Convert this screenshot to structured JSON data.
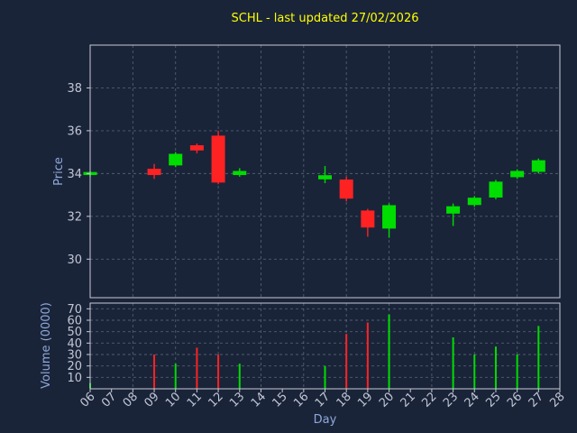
{
  "colors": {
    "background": "#1a2439",
    "frame": "#c5cbd6",
    "grid": "#8b96a8",
    "tick_label": "#c0c6d4",
    "axis_label": "#8fa9d9",
    "title": "#ffff00",
    "green": "#00dd00",
    "red": "#ff2222"
  },
  "chart_data": {
    "type": "candlestick+volume",
    "title": "SCHL - last updated 27/02/2026",
    "xlabel": "Day",
    "price_ylabel": "Price",
    "volume_ylabel": "Volume (0000)",
    "x_ticks": [
      "06",
      "07",
      "08",
      "09",
      "10",
      "11",
      "12",
      "13",
      "14",
      "15",
      "16",
      "17",
      "18",
      "19",
      "20",
      "21",
      "22",
      "23",
      "24",
      "25",
      "26",
      "27",
      "28"
    ],
    "price_ticks": [
      30,
      32,
      34,
      36,
      38
    ],
    "volume_ticks": [
      10,
      20,
      30,
      40,
      50,
      60,
      70
    ],
    "price_ylim": [
      28.2,
      40.0
    ],
    "volume_ylim": [
      0,
      75
    ],
    "grid": "dashed",
    "candles": [
      {
        "day": 6,
        "open": 33.95,
        "close": 34.05,
        "high": 34.1,
        "low": 33.85,
        "color": "green"
      },
      {
        "day": 9,
        "open": 34.2,
        "close": 33.95,
        "high": 34.45,
        "low": 33.75,
        "color": "red"
      },
      {
        "day": 10,
        "open": 34.4,
        "close": 34.9,
        "high": 35.0,
        "low": 34.3,
        "color": "green"
      },
      {
        "day": 11,
        "open": 35.3,
        "close": 35.1,
        "high": 35.4,
        "low": 34.95,
        "color": "red"
      },
      {
        "day": 12,
        "open": 35.75,
        "close": 33.6,
        "high": 36.0,
        "low": 33.5,
        "color": "red"
      },
      {
        "day": 13,
        "open": 33.95,
        "close": 34.1,
        "high": 34.25,
        "low": 33.85,
        "color": "green"
      },
      {
        "day": 17,
        "open": 33.75,
        "close": 33.9,
        "high": 34.35,
        "low": 33.55,
        "color": "green"
      },
      {
        "day": 18,
        "open": 33.7,
        "close": 32.85,
        "high": 33.85,
        "low": 32.7,
        "color": "red"
      },
      {
        "day": 19,
        "open": 32.25,
        "close": 31.5,
        "high": 32.35,
        "low": 31.05,
        "color": "red"
      },
      {
        "day": 20,
        "open": 31.45,
        "close": 32.5,
        "high": 32.6,
        "low": 31.0,
        "color": "green"
      },
      {
        "day": 23,
        "open": 32.15,
        "close": 32.45,
        "high": 32.6,
        "low": 31.55,
        "color": "green"
      },
      {
        "day": 24,
        "open": 32.55,
        "close": 32.85,
        "high": 32.95,
        "low": 32.45,
        "color": "green"
      },
      {
        "day": 25,
        "open": 32.9,
        "close": 33.6,
        "high": 33.7,
        "low": 32.8,
        "color": "green"
      },
      {
        "day": 26,
        "open": 33.85,
        "close": 34.1,
        "high": 34.2,
        "low": 33.75,
        "color": "green"
      },
      {
        "day": 27,
        "open": 34.1,
        "close": 34.6,
        "high": 34.7,
        "low": 34.0,
        "color": "green"
      }
    ],
    "volumes": [
      {
        "day": 6,
        "value": 5,
        "color": "green"
      },
      {
        "day": 9,
        "value": 30,
        "color": "red"
      },
      {
        "day": 10,
        "value": 22,
        "color": "green"
      },
      {
        "day": 11,
        "value": 36,
        "color": "red"
      },
      {
        "day": 12,
        "value": 30,
        "color": "red"
      },
      {
        "day": 13,
        "value": 22,
        "color": "green"
      },
      {
        "day": 17,
        "value": 20,
        "color": "green"
      },
      {
        "day": 18,
        "value": 48,
        "color": "red"
      },
      {
        "day": 19,
        "value": 58,
        "color": "red"
      },
      {
        "day": 20,
        "value": 65,
        "color": "green"
      },
      {
        "day": 23,
        "value": 45,
        "color": "green"
      },
      {
        "day": 24,
        "value": 30,
        "color": "green"
      },
      {
        "day": 25,
        "value": 37,
        "color": "green"
      },
      {
        "day": 26,
        "value": 30,
        "color": "green"
      },
      {
        "day": 27,
        "value": 55,
        "color": "green"
      }
    ]
  }
}
